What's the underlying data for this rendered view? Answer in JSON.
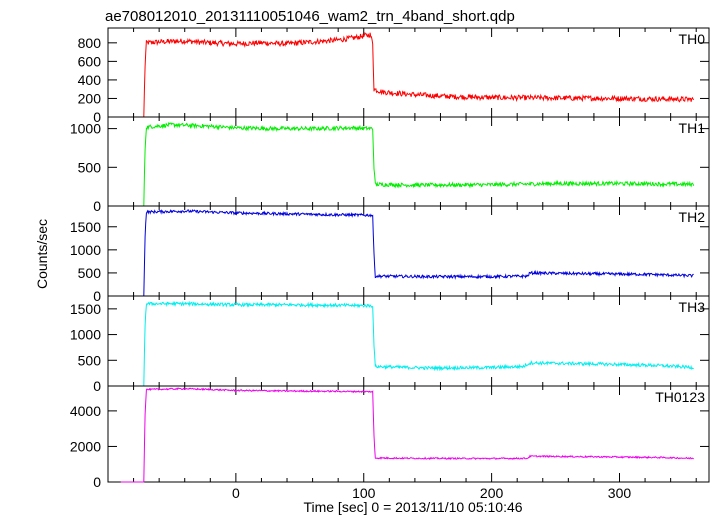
{
  "chart_data": {
    "type": "line",
    "title": "ae708012010_20131110051046_wam2_trn_4band_short.qdp",
    "xlabel": "Time [sec] 0 = 2013/11/10 05:10:46",
    "ylabel": "Counts/sec",
    "xlim": [
      -100,
      370
    ],
    "xticks": [
      0,
      100,
      200,
      300
    ],
    "grid": false,
    "panels": [
      {
        "name": "TH0",
        "color": "#ff0000",
        "ylim": [
          0,
          960
        ],
        "yticks": [
          0,
          200,
          400,
          600,
          800
        ],
        "points": [
          [
            -90,
            0
          ],
          [
            -72,
            0
          ],
          [
            -71,
            560
          ],
          [
            -70,
            800
          ],
          [
            -60,
            810
          ],
          [
            -40,
            820
          ],
          [
            -20,
            800
          ],
          [
            0,
            790
          ],
          [
            20,
            800
          ],
          [
            40,
            790
          ],
          [
            60,
            810
          ],
          [
            80,
            830
          ],
          [
            95,
            860
          ],
          [
            105,
            890
          ],
          [
            107,
            800
          ],
          [
            108,
            300
          ],
          [
            115,
            270
          ],
          [
            140,
            240
          ],
          [
            170,
            220
          ],
          [
            200,
            210
          ],
          [
            250,
            205
          ],
          [
            300,
            200
          ],
          [
            330,
            195
          ],
          [
            358,
            190
          ]
        ],
        "noise": 28
      },
      {
        "name": "TH1",
        "color": "#00ee00",
        "ylim": [
          0,
          1150
        ],
        "yticks": [
          0,
          500,
          1000
        ],
        "points": [
          [
            -90,
            0
          ],
          [
            -72,
            0
          ],
          [
            -71,
            740
          ],
          [
            -70,
            1020
          ],
          [
            -50,
            1050
          ],
          [
            -20,
            1030
          ],
          [
            0,
            1010
          ],
          [
            30,
            1000
          ],
          [
            60,
            1000
          ],
          [
            90,
            1010
          ],
          [
            107,
            1000
          ],
          [
            108,
            500
          ],
          [
            109,
            280
          ],
          [
            140,
            270
          ],
          [
            200,
            275
          ],
          [
            250,
            290
          ],
          [
            300,
            290
          ],
          [
            358,
            280
          ]
        ],
        "noise": 25
      },
      {
        "name": "TH2",
        "color": "#0000dd",
        "ylim": [
          0,
          1950
        ],
        "yticks": [
          0,
          500,
          1000,
          1500
        ],
        "points": [
          [
            -90,
            0
          ],
          [
            -72,
            0
          ],
          [
            -71,
            1300
          ],
          [
            -70,
            1820
          ],
          [
            -40,
            1840
          ],
          [
            0,
            1800
          ],
          [
            40,
            1780
          ],
          [
            80,
            1760
          ],
          [
            107,
            1750
          ],
          [
            108,
            900
          ],
          [
            109,
            430
          ],
          [
            150,
            420
          ],
          [
            200,
            420
          ],
          [
            228,
            430
          ],
          [
            230,
            500
          ],
          [
            280,
            480
          ],
          [
            320,
            470
          ],
          [
            358,
            440
          ]
        ],
        "noise": 30
      },
      {
        "name": "TH3",
        "color": "#00eeee",
        "ylim": [
          0,
          1750
        ],
        "yticks": [
          0,
          500,
          1000,
          1500
        ],
        "points": [
          [
            -90,
            0
          ],
          [
            -72,
            0
          ],
          [
            -71,
            1200
          ],
          [
            -70,
            1600
          ],
          [
            -40,
            1600
          ],
          [
            0,
            1580
          ],
          [
            40,
            1580
          ],
          [
            80,
            1570
          ],
          [
            107,
            1560
          ],
          [
            108,
            800
          ],
          [
            109,
            380
          ],
          [
            150,
            350
          ],
          [
            200,
            360
          ],
          [
            225,
            380
          ],
          [
            230,
            450
          ],
          [
            280,
            430
          ],
          [
            330,
            400
          ],
          [
            358,
            360
          ]
        ],
        "noise": 30
      },
      {
        "name": "TH0123",
        "color": "#ee00ee",
        "ylim": [
          0,
          5400
        ],
        "yticks": [
          0,
          2000,
          4000
        ],
        "points": [
          [
            -90,
            0
          ],
          [
            -72,
            0
          ],
          [
            -71,
            3800
          ],
          [
            -70,
            5200
          ],
          [
            -40,
            5250
          ],
          [
            0,
            5150
          ],
          [
            40,
            5120
          ],
          [
            80,
            5100
          ],
          [
            107,
            5080
          ],
          [
            108,
            2600
          ],
          [
            109,
            1350
          ],
          [
            150,
            1330
          ],
          [
            200,
            1320
          ],
          [
            228,
            1330
          ],
          [
            230,
            1450
          ],
          [
            280,
            1420
          ],
          [
            330,
            1380
          ],
          [
            358,
            1330
          ]
        ],
        "noise": 40
      }
    ]
  }
}
